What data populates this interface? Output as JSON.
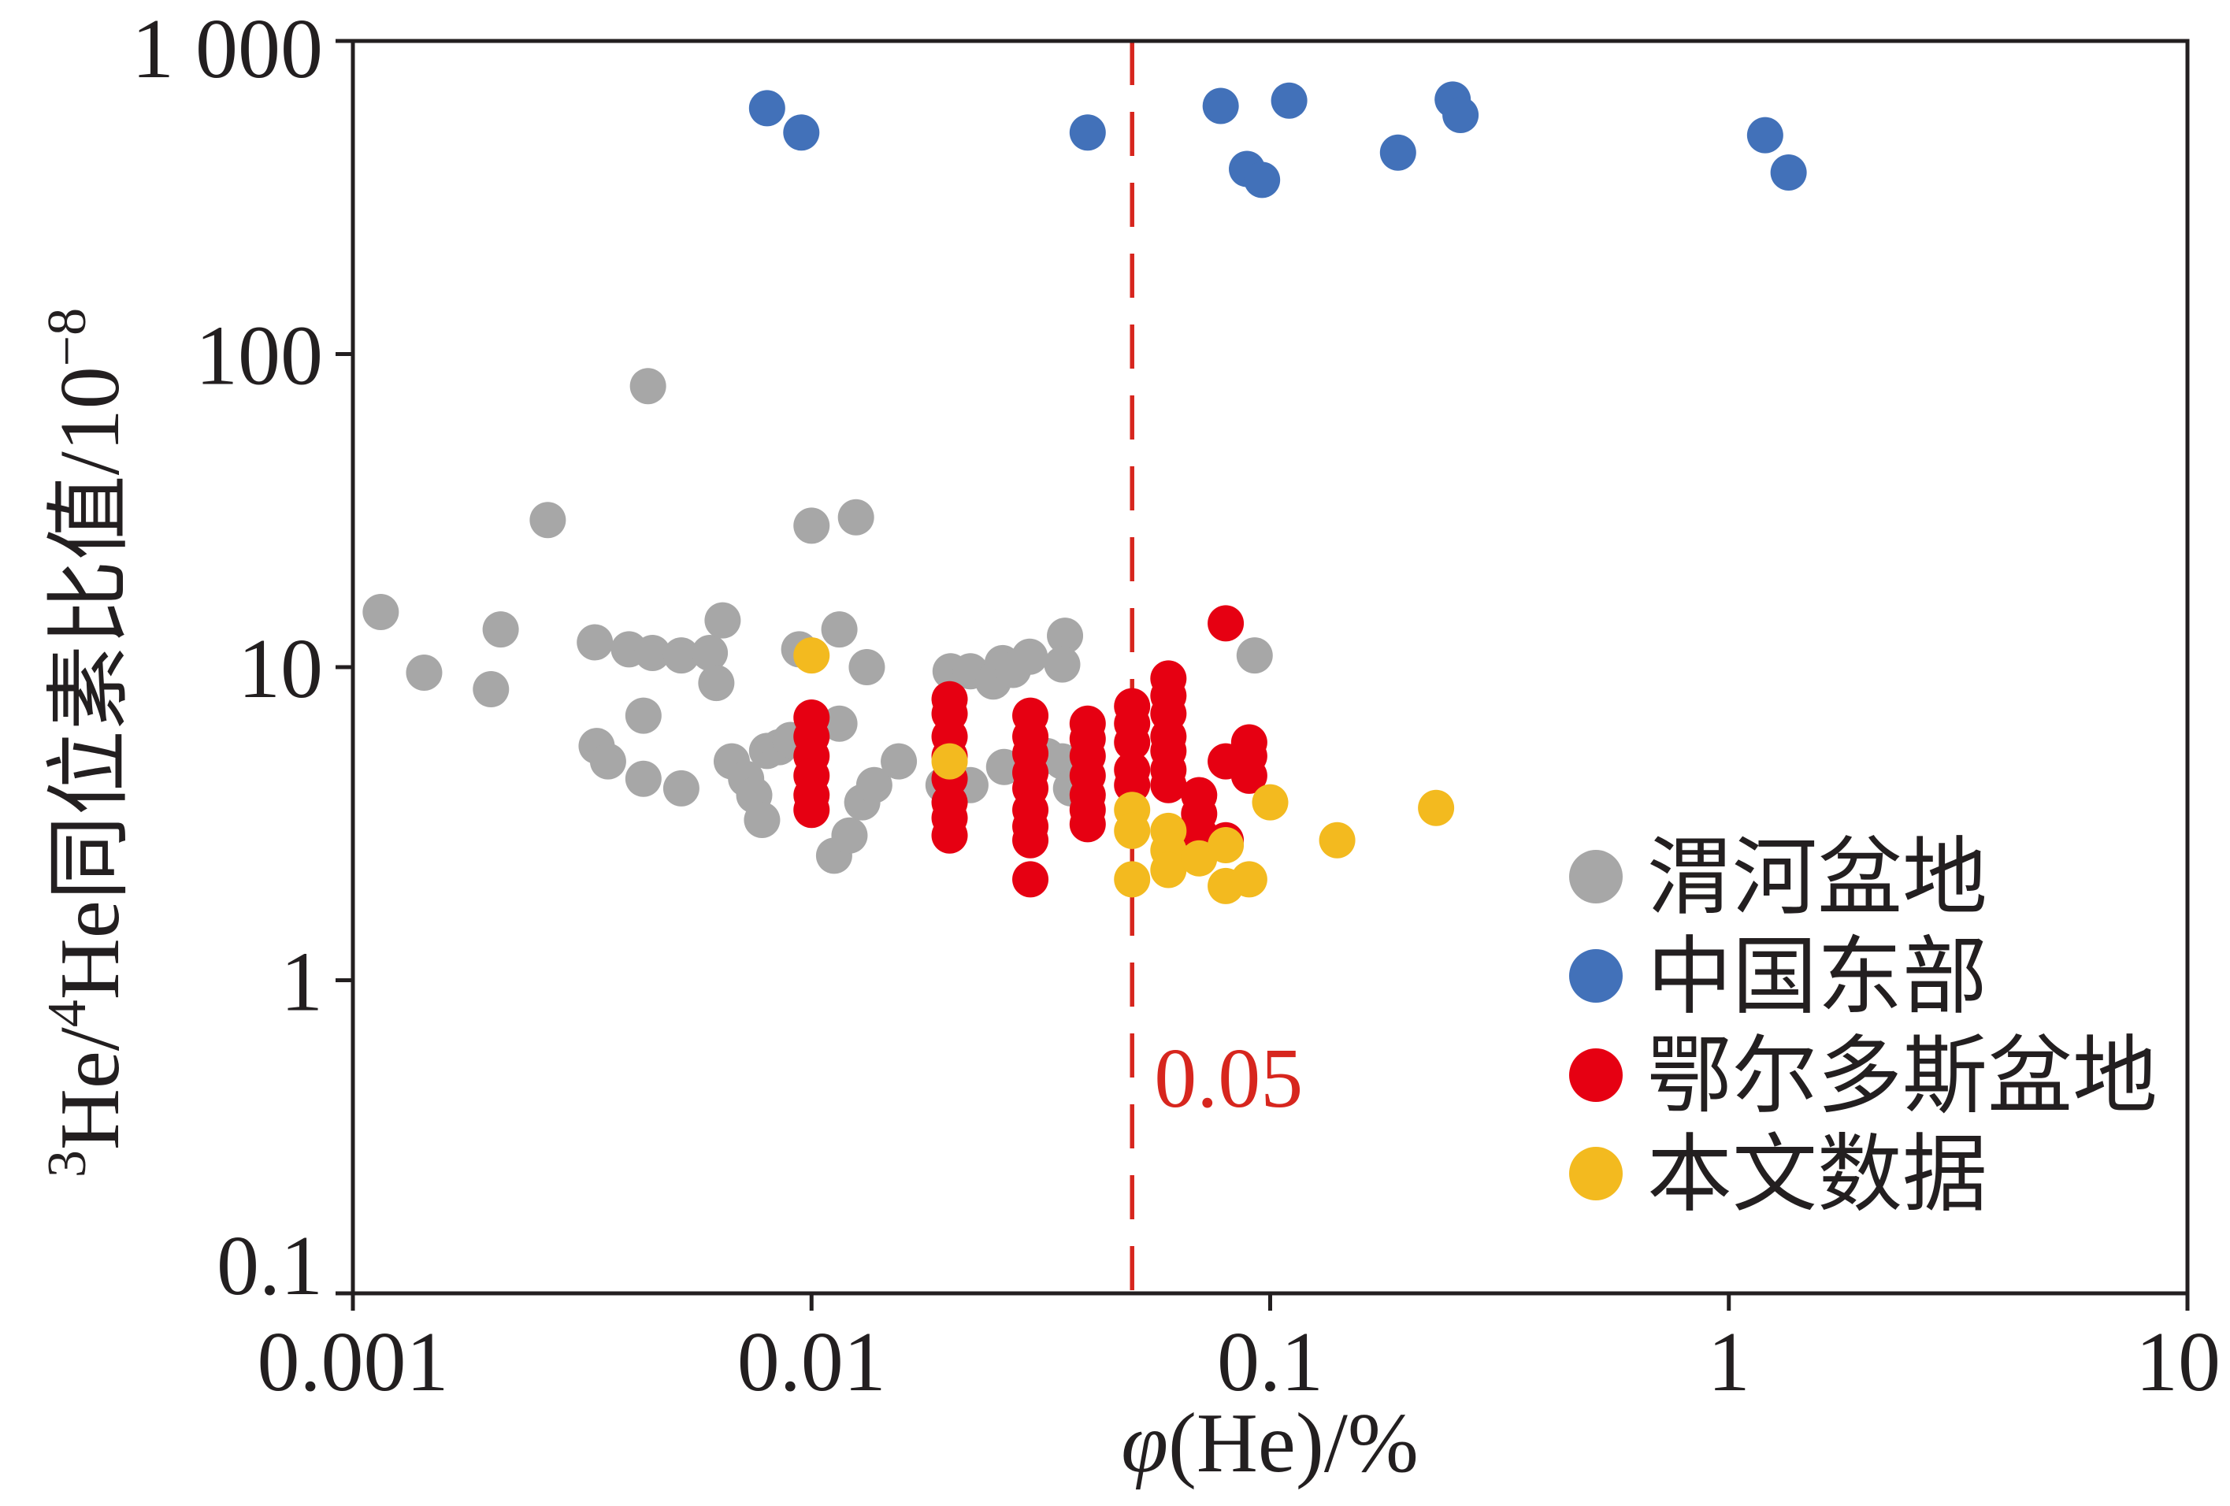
{
  "chart_data": {
    "type": "scatter",
    "title": "",
    "xlabel": [
      {
        "text": "φ",
        "italic": true
      },
      {
        "text": "(He)/%"
      }
    ],
    "ylabel": [
      {
        "text": "3",
        "superscript": true
      },
      {
        "text": "He/"
      },
      {
        "text": "4",
        "superscript": true
      },
      {
        "text": "He同位素比值/10"
      },
      {
        "text": "−8",
        "superscript": true
      }
    ],
    "xscale": "log",
    "yscale": "log",
    "xlim": [
      0.001,
      10
    ],
    "ylim": [
      0.1,
      1000
    ],
    "grid": false,
    "legend_position": "bottom-right",
    "xticks": [
      {
        "value": 0.001,
        "label": "0.001"
      },
      {
        "value": 0.01,
        "label": "0.01"
      },
      {
        "value": 0.1,
        "label": "0.1"
      },
      {
        "value": 1,
        "label": "1"
      },
      {
        "value": 10,
        "label": "10"
      }
    ],
    "yticks": [
      {
        "value": 1000,
        "label": "1 000"
      },
      {
        "value": 100,
        "label": "100"
      },
      {
        "value": 10,
        "label": "10"
      },
      {
        "value": 1,
        "label": "1"
      },
      {
        "value": 0.1,
        "label": "0.1"
      }
    ],
    "reference_lines": [
      {
        "x": 0.05,
        "label": "0.05",
        "color": "#d7261e",
        "line_style": "dashed"
      }
    ],
    "series": [
      {
        "name": "渭河盆地",
        "color": "#a7a7a7",
        "points": [
          [
            0.00115,
            15
          ],
          [
            0.00143,
            9.6
          ],
          [
            0.002,
            8.5
          ],
          [
            0.0021,
            13.2
          ],
          [
            0.00266,
            29.5
          ],
          [
            0.00337,
            12
          ],
          [
            0.0034,
            5.6
          ],
          [
            0.0036,
            5
          ],
          [
            0.004,
            11.4
          ],
          [
            0.0043,
            7
          ],
          [
            0.0043,
            4.4
          ],
          [
            0.0044,
            79
          ],
          [
            0.0045,
            11.1
          ],
          [
            0.0052,
            10.9
          ],
          [
            0.0052,
            4.1
          ],
          [
            0.006,
            11.1
          ],
          [
            0.0064,
            14.1
          ],
          [
            0.0062,
            8.9
          ],
          [
            0.0067,
            5
          ],
          [
            0.0072,
            4.4
          ],
          [
            0.0075,
            3.9
          ],
          [
            0.0078,
            3.25
          ],
          [
            0.008,
            5.4
          ],
          [
            0.0085,
            5.55
          ],
          [
            0.009,
            5.85
          ],
          [
            0.0094,
            11.4
          ],
          [
            0.01,
            28.3
          ],
          [
            0.0115,
            13.2
          ],
          [
            0.0115,
            6.6
          ],
          [
            0.0112,
            2.5
          ],
          [
            0.0121,
            2.9
          ],
          [
            0.0125,
            30.1
          ],
          [
            0.0132,
            10
          ],
          [
            0.0129,
            3.7
          ],
          [
            0.0137,
            4.2
          ],
          [
            0.0155,
            5
          ],
          [
            0.0194,
            4.2
          ],
          [
            0.0201,
            9.7
          ],
          [
            0.0222,
            9.7
          ],
          [
            0.0222,
            4.2
          ],
          [
            0.0249,
            9
          ],
          [
            0.0261,
            10.3
          ],
          [
            0.0263,
            4.8
          ],
          [
            0.0275,
            9.8
          ],
          [
            0.0299,
            10.8
          ],
          [
            0.0326,
            5.2
          ],
          [
            0.0352,
            5
          ],
          [
            0.0357,
            12.6
          ],
          [
            0.0352,
            10.2
          ],
          [
            0.0368,
            4.1
          ],
          [
            0.0925,
            10.9
          ]
        ]
      },
      {
        "name": "中国东部",
        "color": "#4271b9",
        "points": [
          [
            0.008,
            610
          ],
          [
            0.0095,
            510
          ],
          [
            0.04,
            510
          ],
          [
            0.078,
            620
          ],
          [
            0.11,
            645
          ],
          [
            0.089,
            390
          ],
          [
            0.096,
            360
          ],
          [
            0.19,
            440
          ],
          [
            0.25,
            650
          ],
          [
            0.26,
            580
          ],
          [
            1.2,
            500
          ],
          [
            1.35,
            380
          ]
        ]
      },
      {
        "name": "鄂尔多斯盆地",
        "color": "#e60012",
        "points": [
          [
            0.01,
            6.9
          ],
          [
            0.01,
            6
          ],
          [
            0.01,
            5.2
          ],
          [
            0.01,
            4.5
          ],
          [
            0.01,
            3.9
          ],
          [
            0.01,
            3.5
          ],
          [
            0.02,
            7.9
          ],
          [
            0.02,
            7.1
          ],
          [
            0.02,
            6
          ],
          [
            0.02,
            5.2
          ],
          [
            0.02,
            4.4
          ],
          [
            0.02,
            3.7
          ],
          [
            0.02,
            3.3
          ],
          [
            0.02,
            2.9
          ],
          [
            0.03,
            7
          ],
          [
            0.03,
            6
          ],
          [
            0.03,
            5.3
          ],
          [
            0.03,
            4.6
          ],
          [
            0.03,
            4.1
          ],
          [
            0.03,
            3.5
          ],
          [
            0.03,
            3.1
          ],
          [
            0.03,
            2.8
          ],
          [
            0.03,
            2.1
          ],
          [
            0.04,
            6.6
          ],
          [
            0.04,
            5.9
          ],
          [
            0.04,
            5.2
          ],
          [
            0.04,
            4.5
          ],
          [
            0.04,
            3.9
          ],
          [
            0.04,
            3.5
          ],
          [
            0.04,
            3.15
          ],
          [
            0.05,
            7.5
          ],
          [
            0.05,
            6.6
          ],
          [
            0.05,
            5.75
          ],
          [
            0.05,
            4.7
          ],
          [
            0.05,
            4.2
          ],
          [
            0.06,
            9.2
          ],
          [
            0.06,
            8.1
          ],
          [
            0.06,
            7.1
          ],
          [
            0.06,
            6
          ],
          [
            0.06,
            5.4
          ],
          [
            0.06,
            4.7
          ],
          [
            0.06,
            4.2
          ],
          [
            0.07,
            3.9
          ],
          [
            0.07,
            3.4
          ],
          [
            0.07,
            2.95
          ],
          [
            0.08,
            13.8
          ],
          [
            0.08,
            5
          ],
          [
            0.08,
            2.8
          ],
          [
            0.09,
            5.75
          ],
          [
            0.09,
            5.2
          ],
          [
            0.09,
            4.5
          ]
        ]
      },
      {
        "name": "本文数据",
        "color": "#f3ba1f",
        "points": [
          [
            0.01,
            10.9
          ],
          [
            0.02,
            5
          ],
          [
            0.05,
            3.5
          ],
          [
            0.05,
            3
          ],
          [
            0.05,
            2.1
          ],
          [
            0.06,
            3
          ],
          [
            0.06,
            2.6
          ],
          [
            0.06,
            2.25
          ],
          [
            0.07,
            2.45
          ],
          [
            0.08,
            2.7
          ],
          [
            0.08,
            2
          ],
          [
            0.09,
            2.1
          ],
          [
            0.1,
            3.7
          ],
          [
            0.14,
            2.8
          ],
          [
            0.23,
            3.55
          ]
        ]
      }
    ]
  }
}
